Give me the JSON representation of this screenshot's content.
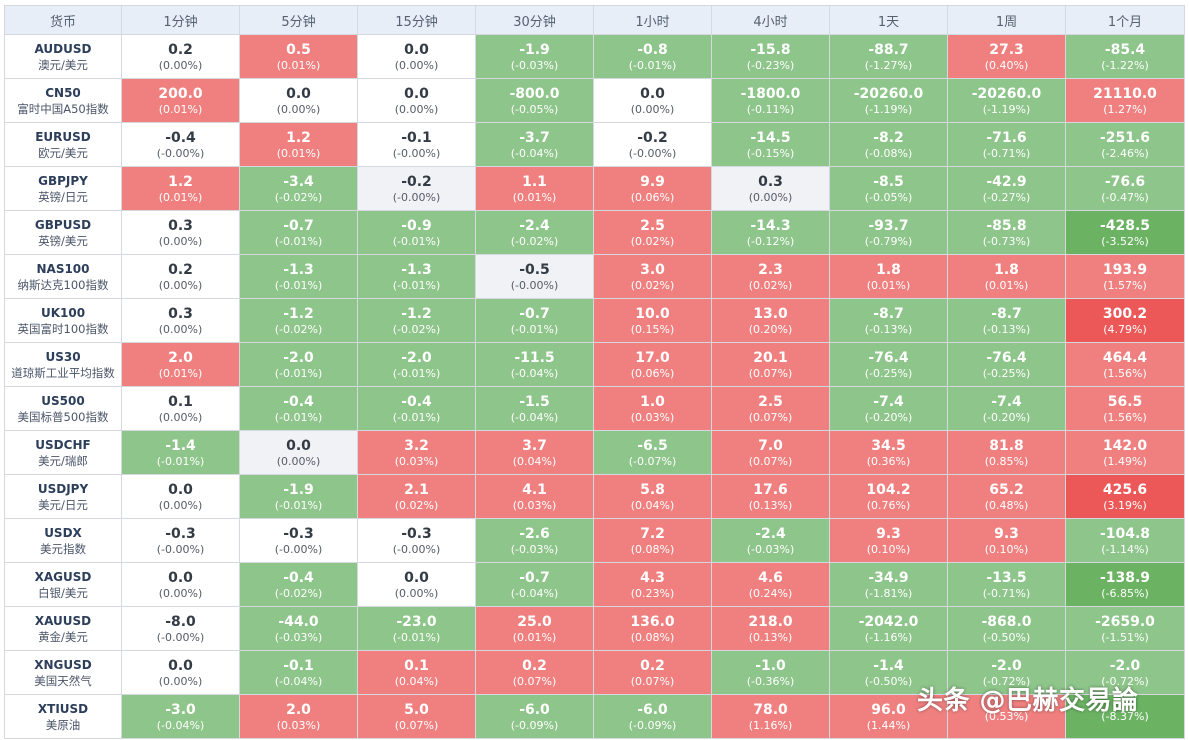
{
  "table": {
    "headers": [
      "货币",
      "1分钟",
      "5分钟",
      "15分钟",
      "30分钟",
      "1小时",
      "4小时",
      "1天",
      "1周",
      "1个月"
    ],
    "rows": [
      {
        "code": "AUDUSD",
        "name": "澳元/美元",
        "cells": [
          {
            "v": "0.2",
            "p": "(0.00%)",
            "c": "flatw"
          },
          {
            "v": "0.5",
            "p": "(0.01%)",
            "c": "up"
          },
          {
            "v": "0.0",
            "p": "(0.00%)",
            "c": "flatw"
          },
          {
            "v": "-1.9",
            "p": "(-0.03%)",
            "c": "down"
          },
          {
            "v": "-0.8",
            "p": "(-0.01%)",
            "c": "down"
          },
          {
            "v": "-15.8",
            "p": "(-0.23%)",
            "c": "down"
          },
          {
            "v": "-88.7",
            "p": "(-1.27%)",
            "c": "down"
          },
          {
            "v": "27.3",
            "p": "(0.40%)",
            "c": "up"
          },
          {
            "v": "-85.4",
            "p": "(-1.22%)",
            "c": "down"
          }
        ]
      },
      {
        "code": "CN50",
        "name": "富时中国A50指数",
        "cells": [
          {
            "v": "200.0",
            "p": "(0.01%)",
            "c": "up"
          },
          {
            "v": "0.0",
            "p": "(0.00%)",
            "c": "flatw"
          },
          {
            "v": "0.0",
            "p": "(0.00%)",
            "c": "flatw"
          },
          {
            "v": "-800.0",
            "p": "(-0.05%)",
            "c": "down"
          },
          {
            "v": "0.0",
            "p": "(0.00%)",
            "c": "flatw"
          },
          {
            "v": "-1800.0",
            "p": "(-0.11%)",
            "c": "down"
          },
          {
            "v": "-20260.0",
            "p": "(-1.19%)",
            "c": "down"
          },
          {
            "v": "-20260.0",
            "p": "(-1.19%)",
            "c": "down"
          },
          {
            "v": "21110.0",
            "p": "(1.27%)",
            "c": "up"
          }
        ]
      },
      {
        "code": "EURUSD",
        "name": "欧元/美元",
        "cells": [
          {
            "v": "-0.4",
            "p": "(-0.00%)",
            "c": "flatw"
          },
          {
            "v": "1.2",
            "p": "(0.01%)",
            "c": "up"
          },
          {
            "v": "-0.1",
            "p": "(-0.00%)",
            "c": "flatw"
          },
          {
            "v": "-3.7",
            "p": "(-0.04%)",
            "c": "down"
          },
          {
            "v": "-0.2",
            "p": "(-0.00%)",
            "c": "flatw"
          },
          {
            "v": "-14.5",
            "p": "(-0.15%)",
            "c": "down"
          },
          {
            "v": "-8.2",
            "p": "(-0.08%)",
            "c": "down"
          },
          {
            "v": "-71.6",
            "p": "(-0.71%)",
            "c": "down"
          },
          {
            "v": "-251.6",
            "p": "(-2.46%)",
            "c": "down"
          }
        ]
      },
      {
        "code": "GBPJPY",
        "name": "英镑/日元",
        "cells": [
          {
            "v": "1.2",
            "p": "(0.01%)",
            "c": "up"
          },
          {
            "v": "-3.4",
            "p": "(-0.02%)",
            "c": "down"
          },
          {
            "v": "-0.2",
            "p": "(-0.00%)",
            "c": "flatg"
          },
          {
            "v": "1.1",
            "p": "(0.01%)",
            "c": "up"
          },
          {
            "v": "9.9",
            "p": "(0.06%)",
            "c": "up"
          },
          {
            "v": "0.3",
            "p": "(0.00%)",
            "c": "flatg"
          },
          {
            "v": "-8.5",
            "p": "(-0.05%)",
            "c": "down"
          },
          {
            "v": "-42.9",
            "p": "(-0.27%)",
            "c": "down"
          },
          {
            "v": "-76.6",
            "p": "(-0.47%)",
            "c": "down"
          }
        ]
      },
      {
        "code": "GBPUSD",
        "name": "英镑/美元",
        "cells": [
          {
            "v": "0.3",
            "p": "(0.00%)",
            "c": "flatw"
          },
          {
            "v": "-0.7",
            "p": "(-0.01%)",
            "c": "down"
          },
          {
            "v": "-0.9",
            "p": "(-0.01%)",
            "c": "down"
          },
          {
            "v": "-2.4",
            "p": "(-0.02%)",
            "c": "down"
          },
          {
            "v": "2.5",
            "p": "(0.02%)",
            "c": "up"
          },
          {
            "v": "-14.3",
            "p": "(-0.12%)",
            "c": "down"
          },
          {
            "v": "-93.7",
            "p": "(-0.79%)",
            "c": "down"
          },
          {
            "v": "-85.8",
            "p": "(-0.73%)",
            "c": "down"
          },
          {
            "v": "-428.5",
            "p": "(-3.52%)",
            "c": "down2"
          }
        ]
      },
      {
        "code": "NAS100",
        "name": "纳斯达克100指数",
        "cells": [
          {
            "v": "0.2",
            "p": "(0.00%)",
            "c": "flatw"
          },
          {
            "v": "-1.3",
            "p": "(-0.01%)",
            "c": "down"
          },
          {
            "v": "-1.3",
            "p": "(-0.01%)",
            "c": "down"
          },
          {
            "v": "-0.5",
            "p": "(-0.00%)",
            "c": "flatg"
          },
          {
            "v": "3.0",
            "p": "(0.02%)",
            "c": "up"
          },
          {
            "v": "2.3",
            "p": "(0.02%)",
            "c": "up"
          },
          {
            "v": "1.8",
            "p": "(0.01%)",
            "c": "up"
          },
          {
            "v": "1.8",
            "p": "(0.01%)",
            "c": "up"
          },
          {
            "v": "193.9",
            "p": "(1.57%)",
            "c": "up"
          }
        ]
      },
      {
        "code": "UK100",
        "name": "英国富时100指数",
        "cells": [
          {
            "v": "0.3",
            "p": "(0.00%)",
            "c": "flatw"
          },
          {
            "v": "-1.2",
            "p": "(-0.02%)",
            "c": "down"
          },
          {
            "v": "-1.2",
            "p": "(-0.02%)",
            "c": "down"
          },
          {
            "v": "-0.7",
            "p": "(-0.01%)",
            "c": "down"
          },
          {
            "v": "10.0",
            "p": "(0.15%)",
            "c": "up"
          },
          {
            "v": "13.0",
            "p": "(0.20%)",
            "c": "up"
          },
          {
            "v": "-8.7",
            "p": "(-0.13%)",
            "c": "down"
          },
          {
            "v": "-8.7",
            "p": "(-0.13%)",
            "c": "down"
          },
          {
            "v": "300.2",
            "p": "(4.79%)",
            "c": "up2"
          }
        ]
      },
      {
        "code": "US30",
        "name": "道琼斯工业平均指数",
        "cells": [
          {
            "v": "2.0",
            "p": "(0.01%)",
            "c": "up"
          },
          {
            "v": "-2.0",
            "p": "(-0.01%)",
            "c": "down"
          },
          {
            "v": "-2.0",
            "p": "(-0.01%)",
            "c": "down"
          },
          {
            "v": "-11.5",
            "p": "(-0.04%)",
            "c": "down"
          },
          {
            "v": "17.0",
            "p": "(0.06%)",
            "c": "up"
          },
          {
            "v": "20.1",
            "p": "(0.07%)",
            "c": "up"
          },
          {
            "v": "-76.4",
            "p": "(-0.25%)",
            "c": "down"
          },
          {
            "v": "-76.4",
            "p": "(-0.25%)",
            "c": "down"
          },
          {
            "v": "464.4",
            "p": "(1.56%)",
            "c": "up"
          }
        ]
      },
      {
        "code": "US500",
        "name": "美国标普500指数",
        "cells": [
          {
            "v": "0.1",
            "p": "(0.00%)",
            "c": "flatw"
          },
          {
            "v": "-0.4",
            "p": "(-0.01%)",
            "c": "down"
          },
          {
            "v": "-0.4",
            "p": "(-0.01%)",
            "c": "down"
          },
          {
            "v": "-1.5",
            "p": "(-0.04%)",
            "c": "down"
          },
          {
            "v": "1.0",
            "p": "(0.03%)",
            "c": "up"
          },
          {
            "v": "2.5",
            "p": "(0.07%)",
            "c": "up"
          },
          {
            "v": "-7.4",
            "p": "(-0.20%)",
            "c": "down"
          },
          {
            "v": "-7.4",
            "p": "(-0.20%)",
            "c": "down"
          },
          {
            "v": "56.5",
            "p": "(1.56%)",
            "c": "up"
          }
        ]
      },
      {
        "code": "USDCHF",
        "name": "美元/瑞郎",
        "cells": [
          {
            "v": "-1.4",
            "p": "(-0.01%)",
            "c": "down"
          },
          {
            "v": "0.0",
            "p": "(0.00%)",
            "c": "flatg"
          },
          {
            "v": "3.2",
            "p": "(0.03%)",
            "c": "up"
          },
          {
            "v": "3.7",
            "p": "(0.04%)",
            "c": "up"
          },
          {
            "v": "-6.5",
            "p": "(-0.07%)",
            "c": "down"
          },
          {
            "v": "7.0",
            "p": "(0.07%)",
            "c": "up"
          },
          {
            "v": "34.5",
            "p": "(0.36%)",
            "c": "up"
          },
          {
            "v": "81.8",
            "p": "(0.85%)",
            "c": "up"
          },
          {
            "v": "142.0",
            "p": "(1.49%)",
            "c": "up"
          }
        ]
      },
      {
        "code": "USDJPY",
        "name": "美元/日元",
        "cells": [
          {
            "v": "0.0",
            "p": "(0.00%)",
            "c": "flatw"
          },
          {
            "v": "-1.9",
            "p": "(-0.01%)",
            "c": "down"
          },
          {
            "v": "2.1",
            "p": "(0.02%)",
            "c": "up"
          },
          {
            "v": "4.1",
            "p": "(0.03%)",
            "c": "up"
          },
          {
            "v": "5.8",
            "p": "(0.04%)",
            "c": "up"
          },
          {
            "v": "17.6",
            "p": "(0.13%)",
            "c": "up"
          },
          {
            "v": "104.2",
            "p": "(0.76%)",
            "c": "up"
          },
          {
            "v": "65.2",
            "p": "(0.48%)",
            "c": "up"
          },
          {
            "v": "425.6",
            "p": "(3.19%)",
            "c": "up2"
          }
        ]
      },
      {
        "code": "USDX",
        "name": "美元指数",
        "cells": [
          {
            "v": "-0.3",
            "p": "(-0.00%)",
            "c": "flatw"
          },
          {
            "v": "-0.3",
            "p": "(-0.00%)",
            "c": "flatw"
          },
          {
            "v": "-0.3",
            "p": "(-0.00%)",
            "c": "flatw"
          },
          {
            "v": "-2.6",
            "p": "(-0.03%)",
            "c": "down"
          },
          {
            "v": "7.2",
            "p": "(0.08%)",
            "c": "up"
          },
          {
            "v": "-2.4",
            "p": "(-0.03%)",
            "c": "down"
          },
          {
            "v": "9.3",
            "p": "(0.10%)",
            "c": "up"
          },
          {
            "v": "9.3",
            "p": "(0.10%)",
            "c": "up"
          },
          {
            "v": "-104.8",
            "p": "(-1.14%)",
            "c": "down"
          }
        ]
      },
      {
        "code": "XAGUSD",
        "name": "白银/美元",
        "cells": [
          {
            "v": "0.0",
            "p": "(0.00%)",
            "c": "flatw"
          },
          {
            "v": "-0.4",
            "p": "(-0.02%)",
            "c": "down"
          },
          {
            "v": "0.0",
            "p": "(0.00%)",
            "c": "flatw"
          },
          {
            "v": "-0.7",
            "p": "(-0.04%)",
            "c": "down"
          },
          {
            "v": "4.3",
            "p": "(0.23%)",
            "c": "up"
          },
          {
            "v": "4.6",
            "p": "(0.24%)",
            "c": "up"
          },
          {
            "v": "-34.9",
            "p": "(-1.81%)",
            "c": "down"
          },
          {
            "v": "-13.5",
            "p": "(-0.71%)",
            "c": "down"
          },
          {
            "v": "-138.9",
            "p": "(-6.85%)",
            "c": "down2"
          }
        ]
      },
      {
        "code": "XAUUSD",
        "name": "黄金/美元",
        "cells": [
          {
            "v": "-8.0",
            "p": "(-0.00%)",
            "c": "flatw"
          },
          {
            "v": "-44.0",
            "p": "(-0.03%)",
            "c": "down"
          },
          {
            "v": "-23.0",
            "p": "(-0.01%)",
            "c": "down"
          },
          {
            "v": "25.0",
            "p": "(0.01%)",
            "c": "up"
          },
          {
            "v": "136.0",
            "p": "(0.08%)",
            "c": "up"
          },
          {
            "v": "218.0",
            "p": "(0.13%)",
            "c": "up"
          },
          {
            "v": "-2042.0",
            "p": "(-1.16%)",
            "c": "down"
          },
          {
            "v": "-868.0",
            "p": "(-0.50%)",
            "c": "down"
          },
          {
            "v": "-2659.0",
            "p": "(-1.51%)",
            "c": "down"
          }
        ]
      },
      {
        "code": "XNGUSD",
        "name": "美国天然气",
        "cells": [
          {
            "v": "0.0",
            "p": "(0.00%)",
            "c": "flatw"
          },
          {
            "v": "-0.1",
            "p": "(-0.04%)",
            "c": "down"
          },
          {
            "v": "0.1",
            "p": "(0.04%)",
            "c": "up"
          },
          {
            "v": "0.2",
            "p": "(0.07%)",
            "c": "up"
          },
          {
            "v": "0.2",
            "p": "(0.07%)",
            "c": "up"
          },
          {
            "v": "-1.0",
            "p": "(-0.36%)",
            "c": "down"
          },
          {
            "v": "-1.4",
            "p": "(-0.50%)",
            "c": "down"
          },
          {
            "v": "-2.0",
            "p": "(-0.72%)",
            "c": "down"
          },
          {
            "v": "-2.0",
            "p": "(-0.72%)",
            "c": "down"
          }
        ]
      },
      {
        "code": "XTIUSD",
        "name": "美原油",
        "cells": [
          {
            "v": "-3.0",
            "p": "(-0.04%)",
            "c": "down"
          },
          {
            "v": "2.0",
            "p": "(0.03%)",
            "c": "up"
          },
          {
            "v": "5.0",
            "p": "(0.07%)",
            "c": "up"
          },
          {
            "v": "-6.0",
            "p": "(-0.09%)",
            "c": "down"
          },
          {
            "v": "-6.0",
            "p": "(-0.09%)",
            "c": "down"
          },
          {
            "v": "78.0",
            "p": "(1.16%)",
            "c": "up"
          },
          {
            "v": "96.0",
            "p": "(1.44%)",
            "c": "up"
          },
          {
            "v": "",
            "p": "(0.53%)",
            "c": "up"
          },
          {
            "v": "",
            "p": "(-8.37%)",
            "c": "down2"
          }
        ]
      }
    ]
  },
  "watermark": "头条 @巴赫交易論",
  "colors": {
    "header_bg": "#e8eef8",
    "up": "#f08080",
    "up_strong": "#ec5858",
    "down": "#8ec58a",
    "down_strong": "#6bb363",
    "flat_gray": "#f1f2f6"
  }
}
